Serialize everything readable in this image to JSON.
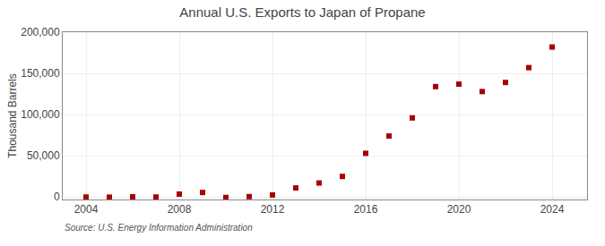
{
  "chart_data": {
    "type": "scatter",
    "title": "Annual U.S. Exports to Japan of Propane",
    "ylabel": "Thousand Barrels",
    "annotations": [
      "Source: U.S. Energy Information Administration"
    ],
    "x": [
      2004,
      2005,
      2006,
      2007,
      2008,
      2009,
      2010,
      2011,
      2012,
      2013,
      2014,
      2015,
      2016,
      2017,
      2018,
      2019,
      2020,
      2021,
      2022,
      2023,
      2024
    ],
    "values": [
      0,
      -200,
      300,
      0,
      3500,
      5500,
      -500,
      500,
      2500,
      11000,
      17000,
      25000,
      53000,
      74000,
      96000,
      134000,
      137000,
      128000,
      139000,
      157000,
      182000
    ],
    "color": "#aa0000",
    "marker": "square",
    "xlim": [
      2003,
      2025.5
    ],
    "ylim": [
      -3000,
      200000
    ],
    "xticks": [
      2004,
      2008,
      2012,
      2016,
      2020,
      2024
    ],
    "yticks": [
      0,
      {
        "value": 50000,
        "label": "50,000"
      },
      {
        "value": 100000,
        "label": "100,000"
      },
      {
        "value": 150000,
        "label": "150,000"
      },
      {
        "value": 200000,
        "label": "200,000"
      }
    ],
    "grid": true
  }
}
